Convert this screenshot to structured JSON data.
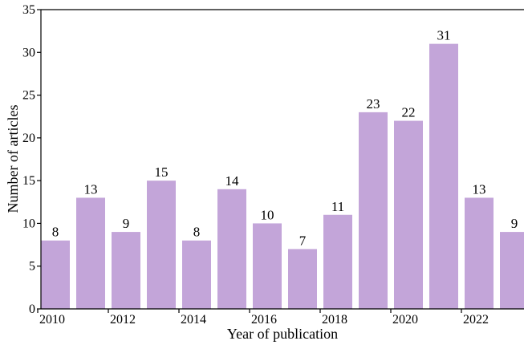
{
  "chart_data": {
    "type": "bar",
    "title": "",
    "xlabel": "Year of publication",
    "ylabel": "Number of articles",
    "categories": [
      "2010",
      "2011",
      "2012",
      "2013",
      "2014",
      "2015",
      "2016",
      "2017",
      "2018",
      "2019",
      "2020",
      "2021",
      "2022",
      "2023"
    ],
    "values": [
      8,
      13,
      9,
      15,
      8,
      14,
      10,
      7,
      11,
      23,
      22,
      31,
      13,
      9
    ],
    "xticks": [
      "2010",
      "2012",
      "2014",
      "2016",
      "2018",
      "2020",
      "2022"
    ],
    "yticks": [
      0,
      5,
      10,
      15,
      20,
      25,
      30,
      35
    ],
    "ylim": [
      0,
      35
    ],
    "bar_color": "#c3a5d9",
    "data_labels": true,
    "grid": false,
    "legend": "none"
  }
}
